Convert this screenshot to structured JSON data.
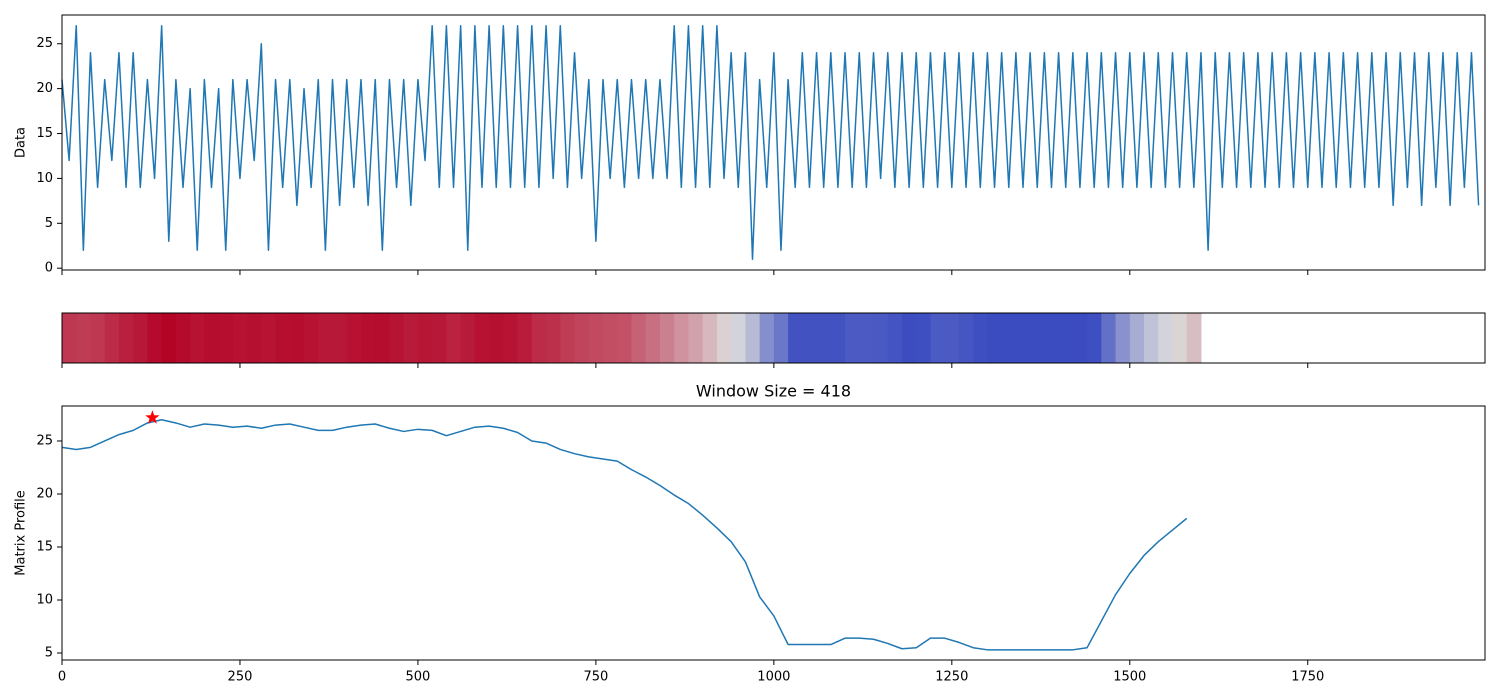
{
  "chart_data": [
    {
      "type": "line",
      "ylabel": "Data",
      "color": "#1f77b4",
      "x": [
        0,
        10,
        20,
        30,
        40,
        50,
        60,
        70,
        80,
        90,
        100,
        110,
        120,
        130,
        140,
        150,
        160,
        170,
        180,
        190,
        200,
        210,
        220,
        230,
        240,
        250,
        260,
        270,
        280,
        290,
        300,
        310,
        320,
        330,
        340,
        350,
        360,
        370,
        380,
        390,
        400,
        410,
        420,
        430,
        440,
        450,
        460,
        470,
        480,
        490,
        500,
        510,
        520,
        530,
        540,
        550,
        560,
        570,
        580,
        590,
        600,
        610,
        620,
        630,
        640,
        650,
        660,
        670,
        680,
        690,
        700,
        710,
        720,
        730,
        740,
        750,
        760,
        770,
        780,
        790,
        800,
        810,
        820,
        830,
        840,
        850,
        860,
        870,
        880,
        890,
        900,
        910,
        920,
        930,
        940,
        950,
        960,
        970,
        980,
        990,
        1000,
        1010,
        1020,
        1030,
        1040,
        1050,
        1060,
        1070,
        1080,
        1090,
        1100,
        1110,
        1120,
        1130,
        1140,
        1150,
        1160,
        1170,
        1180,
        1190,
        1200,
        1210,
        1220,
        1230,
        1240,
        1250,
        1260,
        1270,
        1280,
        1290,
        1300,
        1310,
        1320,
        1330,
        1340,
        1350,
        1360,
        1370,
        1380,
        1390,
        1400,
        1410,
        1420,
        1430,
        1440,
        1450,
        1460,
        1470,
        1480,
        1490,
        1500,
        1510,
        1520,
        1530,
        1540,
        1550,
        1560,
        1570,
        1580,
        1590,
        1600,
        1610,
        1620,
        1630,
        1640,
        1650,
        1660,
        1670,
        1680,
        1690,
        1700,
        1710,
        1720,
        1730,
        1740,
        1750,
        1760,
        1770,
        1780,
        1790,
        1800,
        1810,
        1820,
        1830,
        1840,
        1850,
        1860,
        1870,
        1880,
        1890,
        1900,
        1910,
        1920,
        1930,
        1940,
        1950,
        1960,
        1970,
        1980,
        1990
      ],
      "values": [
        21,
        12,
        27,
        2,
        24,
        9,
        21,
        12,
        24,
        9,
        24,
        9,
        21,
        10,
        27,
        3,
        21,
        9,
        20,
        2,
        21,
        9,
        20,
        2,
        21,
        10,
        21,
        12,
        25,
        2,
        21,
        9,
        21,
        7,
        20,
        9,
        21,
        2,
        21,
        7,
        21,
        9,
        21,
        7,
        21,
        2,
        21,
        9,
        21,
        7,
        21,
        12,
        27,
        9,
        27,
        9,
        27,
        2,
        27,
        9,
        27,
        9,
        27,
        9,
        27,
        9,
        27,
        9,
        27,
        10,
        27,
        9,
        24,
        10,
        21,
        3,
        21,
        10,
        21,
        9,
        21,
        10,
        21,
        10,
        21,
        10,
        27,
        9,
        27,
        9,
        27,
        9,
        27,
        10,
        24,
        9,
        24,
        1,
        21,
        9,
        24,
        2,
        21,
        9,
        24,
        9,
        24,
        9,
        24,
        9,
        24,
        9,
        24,
        9,
        24,
        10,
        24,
        9,
        24,
        9,
        24,
        9,
        24,
        9,
        24,
        9,
        24,
        9,
        24,
        9,
        24,
        9,
        24,
        9,
        24,
        9,
        24,
        9,
        24,
        9,
        24,
        9,
        24,
        9,
        24,
        9,
        24,
        9,
        24,
        9,
        24,
        9,
        24,
        9,
        24,
        9,
        24,
        9,
        24,
        9,
        24,
        2,
        24,
        9,
        24,
        9,
        24,
        9,
        24,
        9,
        24,
        9,
        24,
        9,
        24,
        9,
        24,
        9,
        24,
        9,
        24,
        9,
        24,
        9,
        24,
        9,
        24,
        7,
        24,
        9,
        24,
        7,
        24,
        9,
        24,
        7,
        24,
        9,
        24,
        7
      ],
      "xlim": [
        0,
        1999
      ],
      "ylim": [
        -0.2,
        28.2
      ],
      "xticks": [
        0,
        250,
        500,
        750,
        1000,
        1250,
        1500,
        1750
      ],
      "yticks": [
        0,
        5,
        10,
        15,
        20,
        25
      ],
      "xtick_labels": false
    },
    {
      "type": "heatmap",
      "colormap": [
        "#3b4cc0",
        "#dddddd",
        "#b40426"
      ],
      "x": [
        0,
        20,
        40,
        60,
        80,
        100,
        120,
        140,
        160,
        180,
        200,
        220,
        240,
        260,
        280,
        300,
        320,
        340,
        360,
        380,
        400,
        420,
        440,
        460,
        480,
        500,
        520,
        540,
        560,
        580,
        600,
        620,
        640,
        660,
        680,
        700,
        720,
        740,
        760,
        780,
        800,
        820,
        840,
        860,
        880,
        900,
        920,
        940,
        960,
        980,
        1000,
        1020,
        1040,
        1060,
        1080,
        1100,
        1120,
        1140,
        1160,
        1180,
        1200,
        1220,
        1240,
        1260,
        1280,
        1300,
        1320,
        1340,
        1360,
        1380,
        1400,
        1420,
        1440,
        1460,
        1480,
        1500,
        1520,
        1540,
        1560,
        1580
      ],
      "values": [
        24.4,
        24.2,
        24.4,
        25.0,
        25.6,
        26.0,
        26.7,
        27.0,
        26.7,
        26.3,
        26.6,
        26.5,
        26.3,
        26.4,
        26.2,
        26.5,
        26.6,
        26.3,
        26.0,
        26.0,
        26.3,
        26.5,
        26.6,
        26.2,
        25.9,
        26.1,
        26.0,
        25.5,
        25.9,
        26.3,
        26.4,
        26.2,
        25.8,
        25.0,
        24.8,
        24.2,
        23.8,
        23.5,
        23.3,
        23.1,
        22.3,
        21.6,
        20.8,
        19.9,
        19.1,
        18.0,
        16.8,
        15.5,
        13.6,
        10.3,
        8.5,
        5.8,
        5.8,
        5.8,
        5.8,
        6.4,
        6.4,
        6.3,
        5.9,
        5.4,
        5.5,
        6.4,
        6.4,
        6.0,
        5.5,
        5.3,
        5.3,
        5.3,
        5.3,
        5.3,
        5.3,
        5.3,
        5.5,
        8.0,
        10.5,
        12.5,
        14.2,
        15.5,
        16.6,
        17.7
      ],
      "xlim": [
        0,
        1999
      ],
      "xticks": [
        0,
        250,
        500,
        750,
        1000,
        1250,
        1500,
        1750
      ],
      "xtick_labels": false
    },
    {
      "type": "line",
      "title": "Window Size = 418",
      "ylabel": "Matrix Profile",
      "color": "#1f77b4",
      "x": [
        0,
        20,
        40,
        60,
        80,
        100,
        120,
        140,
        160,
        180,
        200,
        220,
        240,
        260,
        280,
        300,
        320,
        340,
        360,
        380,
        400,
        420,
        440,
        460,
        480,
        500,
        520,
        540,
        560,
        580,
        600,
        620,
        640,
        660,
        680,
        700,
        720,
        740,
        760,
        780,
        800,
        820,
        840,
        860,
        880,
        900,
        920,
        940,
        960,
        980,
        1000,
        1020,
        1040,
        1060,
        1080,
        1100,
        1120,
        1140,
        1160,
        1180,
        1200,
        1220,
        1240,
        1260,
        1280,
        1300,
        1320,
        1340,
        1360,
        1380,
        1400,
        1420,
        1440,
        1460,
        1480,
        1500,
        1520,
        1540,
        1560,
        1580
      ],
      "values": [
        24.4,
        24.2,
        24.4,
        25.0,
        25.6,
        26.0,
        26.7,
        27.0,
        26.7,
        26.3,
        26.6,
        26.5,
        26.3,
        26.4,
        26.2,
        26.5,
        26.6,
        26.3,
        26.0,
        26.0,
        26.3,
        26.5,
        26.6,
        26.2,
        25.9,
        26.1,
        26.0,
        25.5,
        25.9,
        26.3,
        26.4,
        26.2,
        25.8,
        25.0,
        24.8,
        24.2,
        23.8,
        23.5,
        23.3,
        23.1,
        22.3,
        21.6,
        20.8,
        19.9,
        19.1,
        18.0,
        16.8,
        15.5,
        13.6,
        10.3,
        8.5,
        5.8,
        5.8,
        5.8,
        5.8,
        6.4,
        6.4,
        6.3,
        5.9,
        5.4,
        5.5,
        6.4,
        6.4,
        6.0,
        5.5,
        5.3,
        5.3,
        5.3,
        5.3,
        5.3,
        5.3,
        5.3,
        5.5,
        8.0,
        10.5,
        12.5,
        14.2,
        15.5,
        16.6,
        17.7
      ],
      "highlight": {
        "x": 127,
        "y": 27.2,
        "color": "red"
      },
      "xlim": [
        0,
        1999
      ],
      "ylim": [
        4.34,
        28.3
      ],
      "xticks": [
        0,
        250,
        500,
        750,
        1000,
        1250,
        1500,
        1750
      ],
      "yticks": [
        5,
        10,
        15,
        20,
        25
      ],
      "xtick_labels": true
    }
  ]
}
